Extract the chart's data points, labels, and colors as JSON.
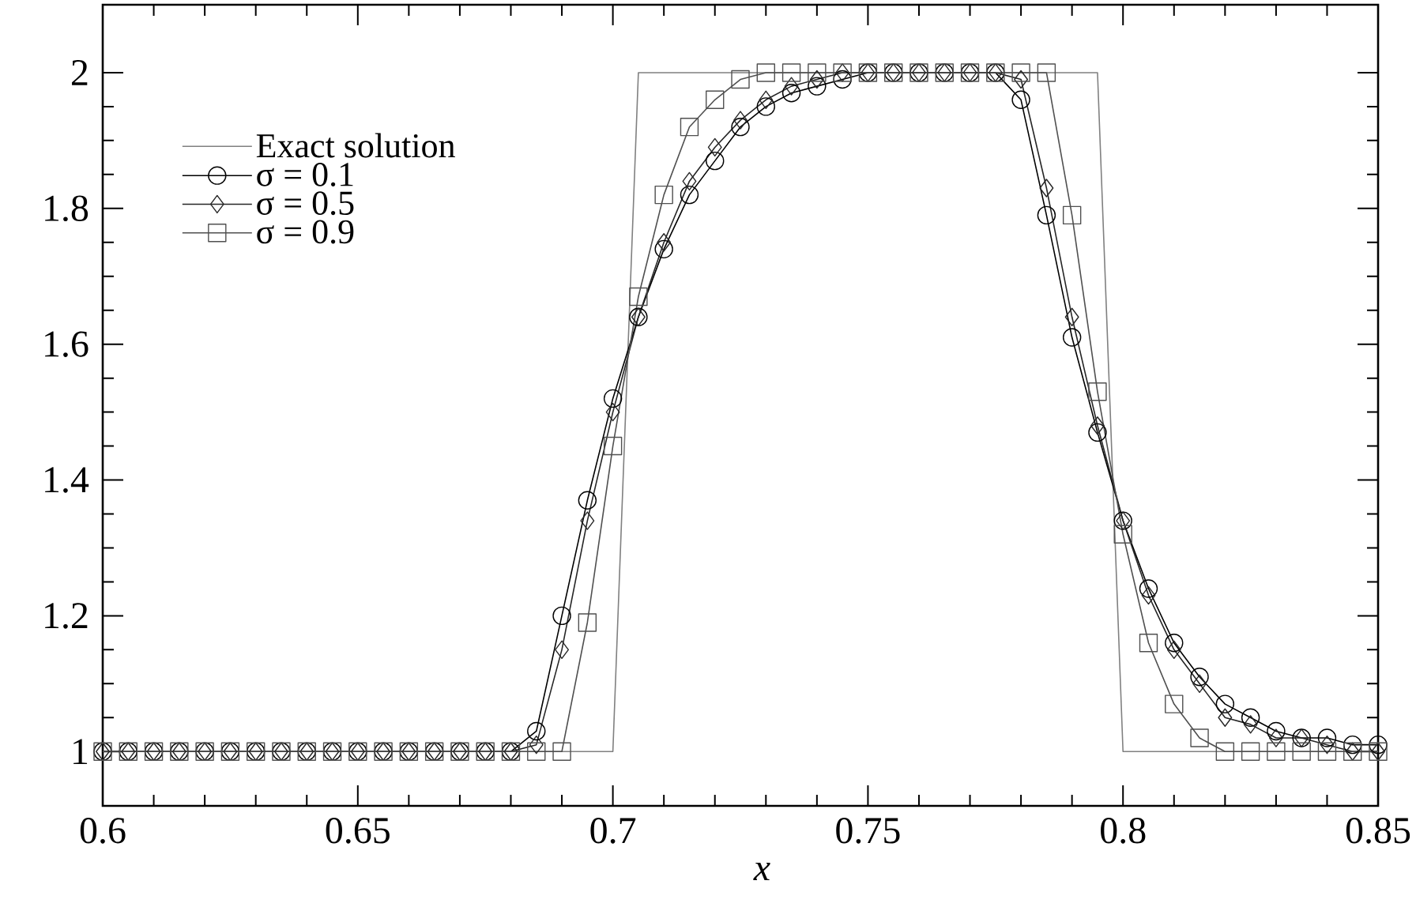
{
  "chart_data": {
    "type": "line",
    "xlabel": "x",
    "xlim": [
      0.6,
      0.85
    ],
    "ylim": [
      0.92,
      2.1
    ],
    "xticks": [
      0.6,
      0.65,
      0.7,
      0.75,
      0.8,
      0.85
    ],
    "yticks": [
      1,
      1.2,
      1.4,
      1.6,
      1.8,
      2
    ],
    "legend": "top left",
    "line_style": "solid",
    "x": [
      0.6,
      0.605,
      0.61,
      0.615,
      0.62,
      0.625,
      0.63,
      0.635,
      0.64,
      0.645,
      0.65,
      0.655,
      0.66,
      0.665,
      0.67,
      0.675,
      0.68,
      0.685,
      0.69,
      0.695,
      0.7,
      0.705,
      0.71,
      0.715,
      0.72,
      0.725,
      0.73,
      0.735,
      0.74,
      0.745,
      0.75,
      0.755,
      0.76,
      0.765,
      0.77,
      0.775,
      0.78,
      0.785,
      0.79,
      0.795,
      0.8,
      0.805,
      0.81,
      0.815,
      0.82,
      0.825,
      0.83,
      0.835,
      0.84,
      0.845,
      0.85
    ],
    "series": [
      {
        "name": "Exact solution",
        "color": "#808080",
        "marker": "none",
        "values": [
          1,
          1,
          1,
          1,
          1,
          1,
          1,
          1,
          1,
          1,
          1,
          1,
          1,
          1,
          1,
          1,
          1,
          1,
          1,
          1,
          1,
          2,
          2,
          2,
          2,
          2,
          2,
          2,
          2,
          2,
          2,
          2,
          2,
          2,
          2,
          2,
          2,
          2,
          2,
          2,
          1,
          1,
          1,
          1,
          1,
          1,
          1,
          1,
          1,
          1,
          1
        ]
      },
      {
        "name": "σ = 0.1",
        "color": "#000000",
        "marker": "circle",
        "values": [
          1,
          1,
          1,
          1,
          1,
          1,
          1,
          1,
          1,
          1,
          1,
          1,
          1,
          1,
          1,
          1,
          1,
          1.03,
          1.2,
          1.37,
          1.52,
          1.64,
          1.74,
          1.82,
          1.87,
          1.92,
          1.95,
          1.97,
          1.98,
          1.99,
          2,
          2,
          2,
          2,
          2,
          2,
          1.96,
          1.79,
          1.61,
          1.47,
          1.34,
          1.24,
          1.16,
          1.11,
          1.07,
          1.05,
          1.03,
          1.02,
          1.02,
          1.01,
          1.01
        ]
      },
      {
        "name": "σ = 0.5",
        "color": "#262626",
        "marker": "diamond",
        "values": [
          1,
          1,
          1,
          1,
          1,
          1,
          1,
          1,
          1,
          1,
          1,
          1,
          1,
          1,
          1,
          1,
          1,
          1.01,
          1.15,
          1.34,
          1.5,
          1.64,
          1.75,
          1.84,
          1.89,
          1.93,
          1.96,
          1.98,
          1.99,
          2,
          2,
          2,
          2,
          2,
          2,
          2,
          1.99,
          1.83,
          1.64,
          1.48,
          1.34,
          1.23,
          1.15,
          1.1,
          1.05,
          1.04,
          1.02,
          1.02,
          1.01,
          1,
          1
        ]
      },
      {
        "name": "σ = 0.9",
        "color": "#505050",
        "marker": "square",
        "values": [
          1,
          1,
          1,
          1,
          1,
          1,
          1,
          1,
          1,
          1,
          1,
          1,
          1,
          1,
          1,
          1,
          1,
          1,
          1,
          1.19,
          1.45,
          1.67,
          1.82,
          1.92,
          1.96,
          1.99,
          2,
          2,
          2,
          2,
          2,
          2,
          2,
          2,
          2,
          2,
          2,
          2,
          1.79,
          1.53,
          1.32,
          1.16,
          1.07,
          1.02,
          1,
          1,
          1,
          1,
          1,
          1,
          1
        ]
      }
    ]
  }
}
